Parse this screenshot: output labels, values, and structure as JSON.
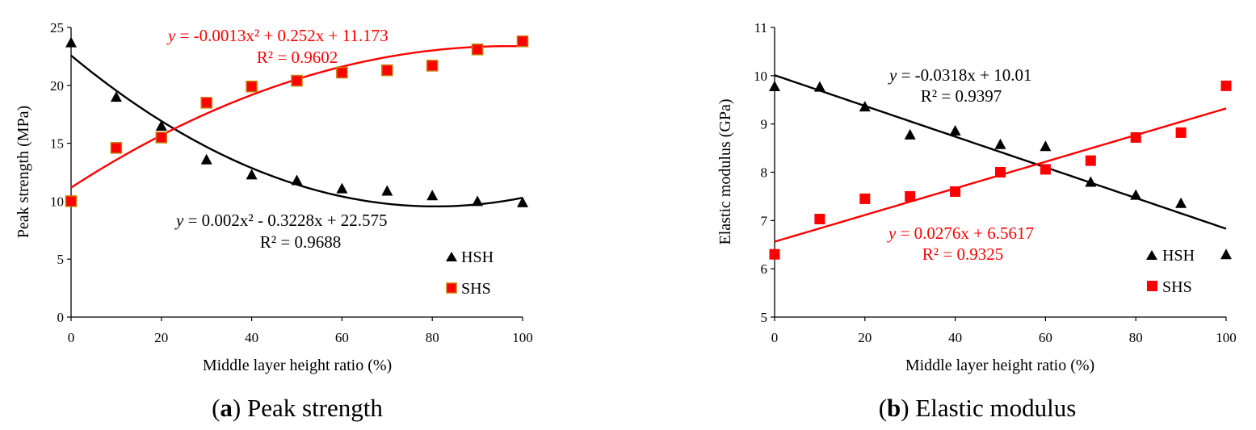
{
  "figure": {
    "captions": [
      {
        "letter": "a",
        "text": " Peak strength"
      },
      {
        "letter": "b",
        "text": " Elastic modulus"
      }
    ]
  },
  "colors": {
    "hsh": "#000000",
    "shs": "#ff0000",
    "shs_border": "#c87800"
  },
  "chart_data": [
    {
      "type": "scatter",
      "title": "Peak strength",
      "xlabel": "Middle layer height ratio (%)",
      "ylabel": "Peak strength (MPa)",
      "xlim": [
        0,
        100
      ],
      "ylim": [
        0,
        25
      ],
      "xticks": [
        0,
        20,
        40,
        60,
        80,
        100
      ],
      "yticks": [
        0,
        5,
        10,
        15,
        20,
        25
      ],
      "series": [
        {
          "name": "HSH",
          "marker": "triangle",
          "x": [
            0,
            10,
            20,
            30,
            40,
            50,
            60,
            70,
            80,
            90,
            100
          ],
          "y": [
            23.7,
            19.0,
            16.5,
            13.6,
            12.3,
            11.8,
            11.1,
            10.9,
            10.5,
            10.0,
            9.9
          ],
          "fit": {
            "kind": "poly2",
            "a": 0.002,
            "b": -0.3228,
            "c": 22.575
          },
          "equation": {
            "prefix": "y",
            "body": " = 0.002x² - 0.3228x + 22.575",
            "r2": "R² = 0.9688"
          }
        },
        {
          "name": "SHS",
          "marker": "square",
          "x": [
            0,
            10,
            20,
            30,
            40,
            50,
            60,
            70,
            80,
            90,
            100
          ],
          "y": [
            10.0,
            14.6,
            15.5,
            18.5,
            19.9,
            20.4,
            21.1,
            21.3,
            21.7,
            23.1,
            23.8
          ],
          "fit": {
            "kind": "poly2",
            "a": -0.0013,
            "b": 0.252,
            "c": 11.173
          },
          "equation": {
            "prefix": "y",
            "body": " = -0.0013x² + 0.252x + 11.173",
            "r2": "R² = 0.9602"
          }
        }
      ],
      "legend": {
        "position": "bottom-right",
        "entries": [
          "HSH",
          "SHS"
        ]
      }
    },
    {
      "type": "scatter",
      "title": "Elastic modulus",
      "xlabel": "Middle layer height ratio (%)",
      "ylabel": "Elastic modulus (GPa)",
      "xlim": [
        0,
        100
      ],
      "ylim": [
        5,
        11
      ],
      "xticks": [
        0,
        20,
        40,
        60,
        80,
        100
      ],
      "yticks": [
        5,
        6,
        7,
        8,
        9,
        10,
        11
      ],
      "series": [
        {
          "name": "HSH",
          "marker": "triangle",
          "x": [
            0,
            10,
            20,
            30,
            40,
            50,
            60,
            70,
            80,
            90,
            100
          ],
          "y": [
            9.78,
            9.77,
            9.36,
            8.78,
            8.86,
            8.58,
            8.54,
            7.8,
            7.53,
            7.36,
            6.3
          ],
          "fit": {
            "kind": "linear",
            "a": 0,
            "b": -0.0318,
            "c": 10.01
          },
          "equation": {
            "prefix": "y",
            "body": " = -0.0318x + 10.01",
            "r2": "R² = 0.9397"
          }
        },
        {
          "name": "SHS",
          "marker": "square",
          "x": [
            0,
            10,
            20,
            30,
            40,
            50,
            60,
            70,
            80,
            90,
            100
          ],
          "y": [
            6.3,
            7.03,
            7.45,
            7.5,
            7.6,
            8.0,
            8.06,
            8.24,
            8.72,
            8.82,
            9.79
          ],
          "fit": {
            "kind": "linear",
            "a": 0,
            "b": 0.0276,
            "c": 6.5617
          },
          "equation": {
            "prefix": "y",
            "body": " = 0.0276x + 6.5617",
            "r2": "R² = 0.9325"
          }
        }
      ],
      "legend": {
        "position": "bottom-right",
        "entries": [
          "HSH",
          "SHS"
        ]
      }
    }
  ]
}
